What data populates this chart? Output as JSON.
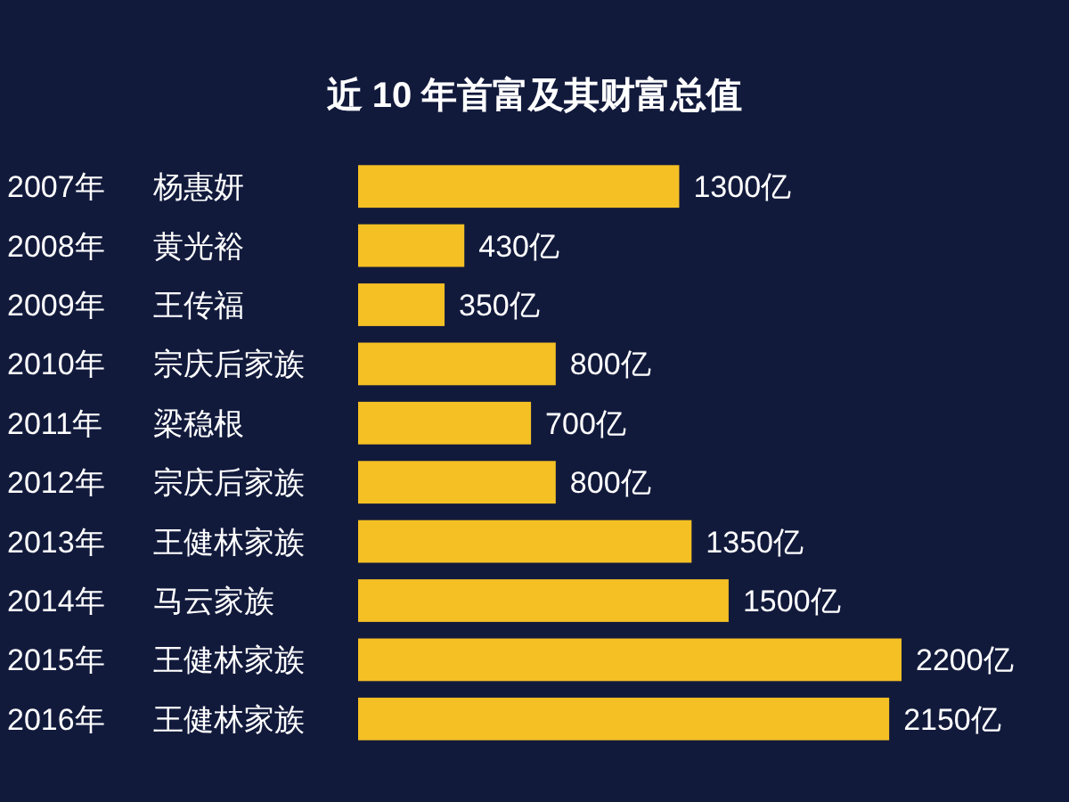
{
  "chart_data": {
    "type": "bar",
    "orientation": "horizontal",
    "title": "近 10 年首富及其财富总值",
    "categories": [
      "2007年 杨惠妍",
      "2008年 黄光裕",
      "2009年 王传福",
      "2010年 宗庆后家族",
      "2011年 梁稳根",
      "2012年 宗庆后家族",
      "2013年 王健林家族",
      "2014年 马云家族",
      "2015年 王健林家族",
      "2016年 王健林家族"
    ],
    "values": [
      1300,
      430,
      350,
      800,
      700,
      800,
      1350,
      1500,
      2200,
      2150
    ],
    "value_labels": [
      "1300亿",
      "430亿",
      "350亿",
      "800亿",
      "700亿",
      "800亿",
      "1350亿",
      "1500亿",
      "2200亿",
      "2150亿"
    ],
    "color": "#f5c024"
  }
}
